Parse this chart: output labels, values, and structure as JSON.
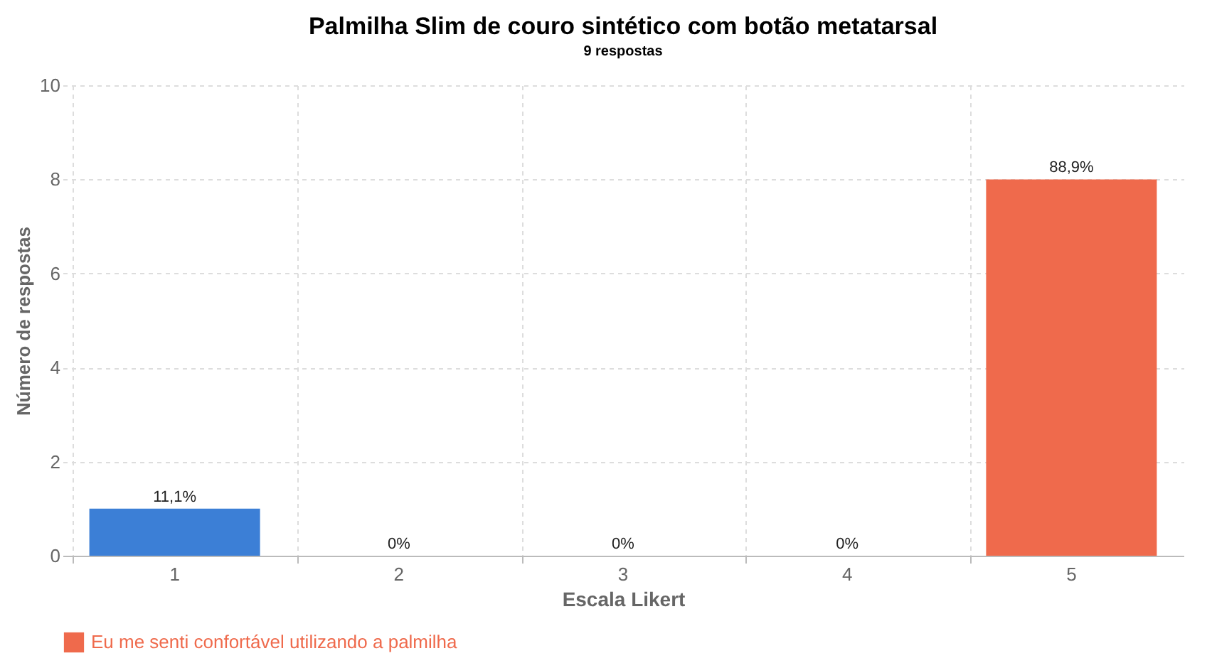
{
  "chart_data": {
    "type": "bar",
    "title": "Palmilha Slim de couro sintético com botão metatarsal",
    "subtitle": "9 respostas",
    "xlabel": "Escala Likert",
    "ylabel": "Número de respostas",
    "categories": [
      "1",
      "2",
      "3",
      "4",
      "5"
    ],
    "series": [
      {
        "name": "Eu me senti confortável utilizando a palmilha",
        "color": "#ef6a4c",
        "colors": [
          "#3c7fd6",
          "#c9a91c",
          "#c8954a",
          "#c8703f",
          "#ef6a4c"
        ],
        "values": [
          1,
          0,
          0,
          0,
          8
        ]
      }
    ],
    "annotations": [
      {
        "text": "11,1%",
        "x": "1",
        "y": 1
      },
      {
        "text": "0%",
        "x": "2",
        "y": 0
      },
      {
        "text": "0%",
        "x": "3",
        "y": 0
      },
      {
        "text": "0%",
        "x": "4",
        "y": 0
      },
      {
        "text": "88,9%",
        "x": "5",
        "y": 8
      }
    ],
    "ylim": [
      0,
      10
    ],
    "yticks": [
      0,
      2,
      4,
      6,
      8,
      10
    ],
    "grid": true,
    "legend": "bottom left"
  }
}
